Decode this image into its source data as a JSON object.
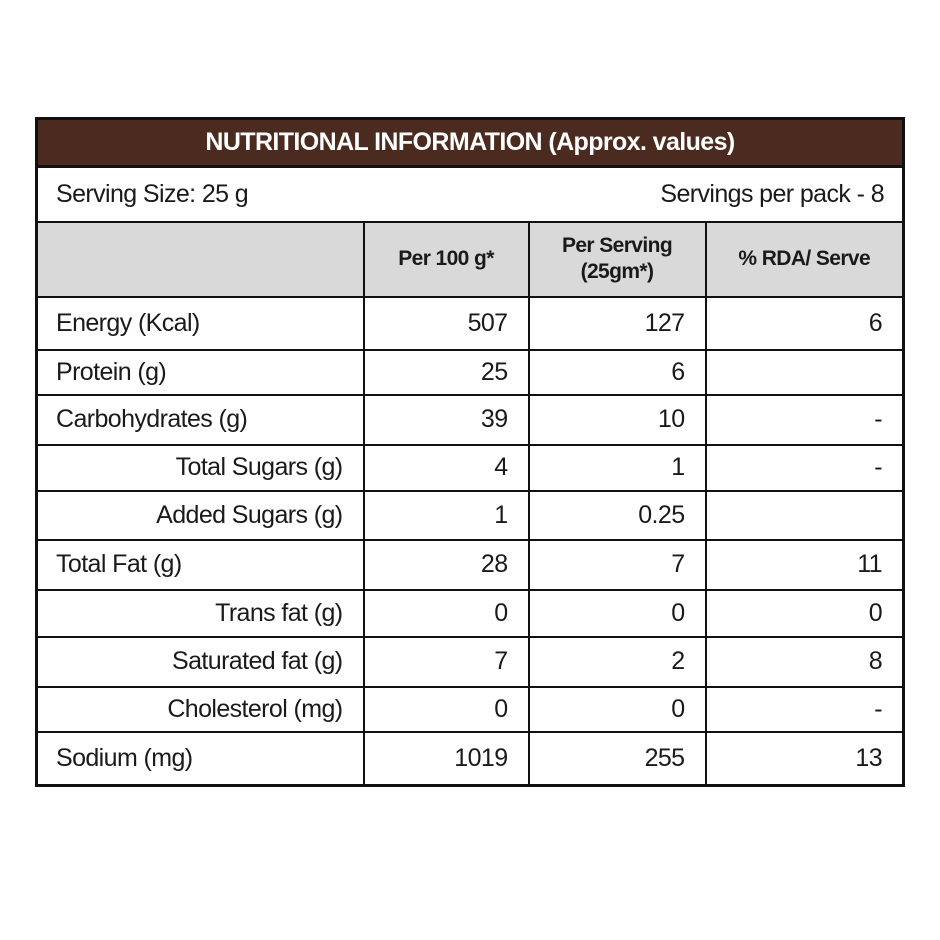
{
  "title": "NUTRITIONAL INFORMATION (Approx. values)",
  "serving_size": "Serving Size: 25 g",
  "servings_per_pack": "Servings per pack - 8",
  "table": {
    "header": [
      "Per 100 g*",
      "Per Serving (25gm*)",
      "% RDA/ Serve"
    ],
    "rows": [
      [
        "Energy (Kcal)",
        507,
        127,
        6
      ],
      [
        "Protein (g)",
        25,
        6,
        null
      ],
      [
        "Carbohydrates (g)",
        39,
        10,
        "-"
      ],
      [
        "Total Sugars (g)",
        4,
        1,
        "-"
      ],
      [
        "Added Sugars (g)",
        1,
        0.25,
        null
      ],
      [
        "Total Fat (g)",
        28,
        7,
        11
      ],
      [
        "Trans fat (g)",
        0,
        0,
        0
      ],
      [
        "Saturated fat (g)",
        7,
        2,
        8
      ],
      [
        "Cholesterol (mg)",
        0,
        0,
        "-"
      ],
      [
        "Sodium (mg)",
        1019,
        255,
        13
      ]
    ]
  }
}
